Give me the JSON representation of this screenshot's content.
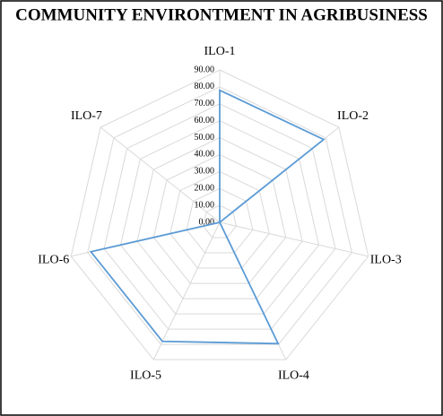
{
  "chart_data": {
    "type": "radar",
    "title": "COMMUNITY ENVIRONTMENT IN AGRIBUSINESS",
    "categories": [
      "ILO-1",
      "ILO-2",
      "ILO-3",
      "ILO-4",
      "ILO-5",
      "ILO-6",
      "ILO-7"
    ],
    "values": [
      78,
      78.5,
      0,
      79.5,
      78,
      78,
      0
    ],
    "color": "#5b9bd5",
    "ylim": [
      0,
      90
    ],
    "yticks": [
      {
        "value": 0,
        "label": "0.00"
      },
      {
        "value": 10,
        "label": "10.00"
      },
      {
        "value": 20,
        "label": "20.00"
      },
      {
        "value": 30,
        "label": "30.00"
      },
      {
        "value": 40,
        "label": "40.00"
      },
      {
        "value": 50,
        "label": "50.00"
      },
      {
        "value": 60,
        "label": "60.00"
      },
      {
        "value": 70,
        "label": "70.00"
      },
      {
        "value": 80,
        "label": "80.00"
      },
      {
        "value": 90,
        "label": "90.00"
      }
    ],
    "grid": true
  }
}
